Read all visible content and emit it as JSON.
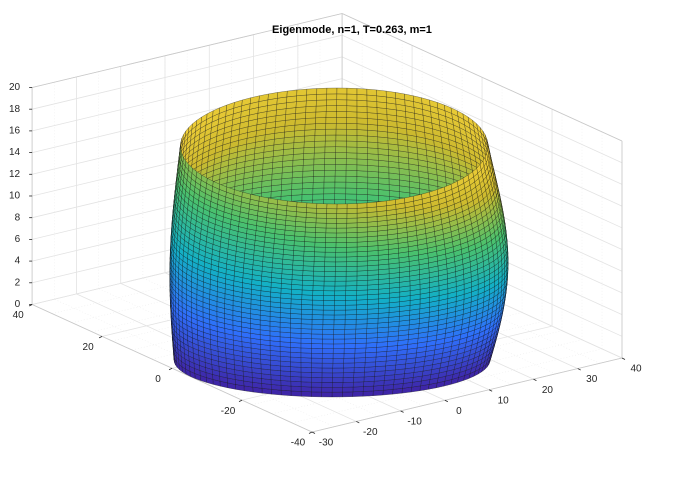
{
  "chart_data": {
    "type": "surface",
    "title": "Eigenmode, n=1, T=0.263, m=1",
    "xlim": [
      -30,
      40
    ],
    "ylim": [
      -40,
      40
    ],
    "zlim": [
      0,
      20
    ],
    "xticks": [
      -30,
      -20,
      -10,
      0,
      10,
      20,
      30,
      40
    ],
    "yticks": [
      -40,
      -20,
      0,
      20,
      40
    ],
    "zticks": [
      0,
      2,
      4,
      6,
      8,
      10,
      12,
      14,
      16,
      18,
      20
    ],
    "grid": true
  }
}
